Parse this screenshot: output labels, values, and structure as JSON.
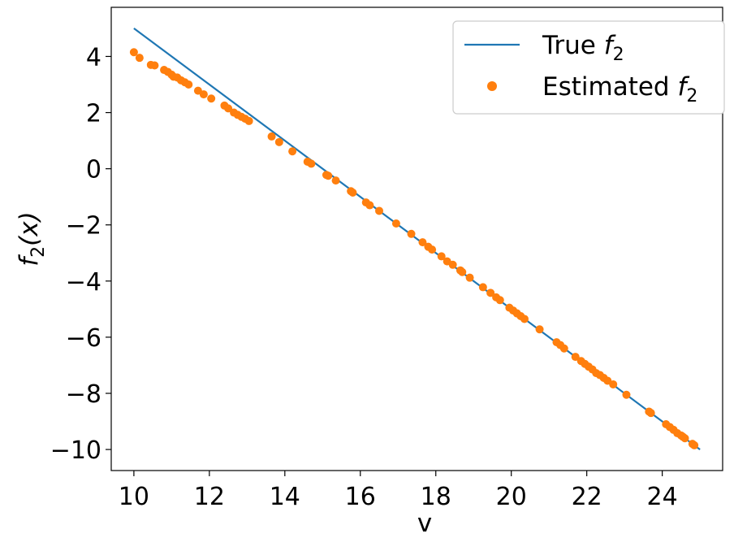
{
  "chart_data": {
    "type": "line+scatter",
    "xlabel": "v",
    "ylabel": "f_2(x)",
    "xlim": [
      9.4,
      25.6
    ],
    "ylim": [
      -10.75,
      5.75
    ],
    "xticks": [
      10,
      12,
      14,
      16,
      18,
      20,
      22,
      24
    ],
    "yticks": [
      4,
      2,
      0,
      -2,
      -4,
      -6,
      -8,
      -10
    ],
    "xtick_labels": [
      "10",
      "12",
      "14",
      "16",
      "18",
      "20",
      "22",
      "24"
    ],
    "ytick_labels": [
      "4",
      "2",
      "0",
      "−2",
      "−4",
      "−6",
      "−8",
      "−10"
    ],
    "legend_position": "top-right",
    "grid": false,
    "series": [
      {
        "name": "True f_2",
        "legend_main": "True ",
        "legend_sub": "2",
        "kind": "line",
        "color": "#1f77b4",
        "x": [
          10,
          25
        ],
        "y": [
          5,
          -10
        ]
      },
      {
        "name": "Estimated f_2",
        "legend_main": "Estimated ",
        "legend_sub": "2",
        "kind": "scatter",
        "color": "#ff7f0e",
        "x": [
          10.0,
          10.15,
          10.45,
          10.55,
          10.8,
          10.9,
          11.0,
          11.05,
          11.15,
          11.25,
          11.35,
          11.45,
          11.7,
          11.85,
          12.05,
          12.4,
          12.5,
          12.65,
          12.75,
          12.85,
          12.95,
          13.05,
          13.65,
          13.85,
          14.2,
          14.6,
          14.7,
          15.1,
          15.15,
          15.35,
          15.75,
          15.8,
          16.15,
          16.25,
          16.5,
          16.95,
          17.35,
          17.65,
          17.8,
          17.9,
          18.15,
          18.3,
          18.45,
          18.65,
          18.7,
          18.9,
          19.25,
          19.45,
          19.6,
          19.7,
          19.95,
          20.05,
          20.15,
          20.25,
          20.35,
          20.75,
          21.2,
          21.3,
          21.4,
          21.7,
          21.85,
          21.95,
          22.05,
          22.15,
          22.25,
          22.35,
          22.45,
          22.55,
          22.7,
          23.05,
          23.65,
          23.7,
          24.1,
          24.2,
          24.3,
          24.4,
          24.5,
          24.55,
          24.6,
          24.8,
          24.85
        ],
        "y": [
          4.15,
          3.95,
          3.7,
          3.68,
          3.52,
          3.45,
          3.35,
          3.28,
          3.25,
          3.15,
          3.08,
          3.0,
          2.78,
          2.65,
          2.5,
          2.25,
          2.15,
          2.0,
          1.92,
          1.85,
          1.78,
          1.7,
          1.15,
          0.95,
          0.62,
          0.25,
          0.18,
          -0.22,
          -0.25,
          -0.42,
          -0.8,
          -0.85,
          -1.2,
          -1.3,
          -1.5,
          -1.95,
          -2.32,
          -2.62,
          -2.78,
          -2.88,
          -3.12,
          -3.3,
          -3.42,
          -3.62,
          -3.68,
          -3.88,
          -4.22,
          -4.42,
          -4.58,
          -4.68,
          -4.95,
          -5.05,
          -5.15,
          -5.25,
          -5.35,
          -5.72,
          -6.18,
          -6.28,
          -6.4,
          -6.7,
          -6.85,
          -6.95,
          -7.05,
          -7.15,
          -7.28,
          -7.35,
          -7.45,
          -7.55,
          -7.68,
          -8.05,
          -8.65,
          -8.7,
          -9.1,
          -9.2,
          -9.3,
          -9.42,
          -9.5,
          -9.55,
          -9.6,
          -9.8,
          -9.85
        ]
      }
    ]
  }
}
